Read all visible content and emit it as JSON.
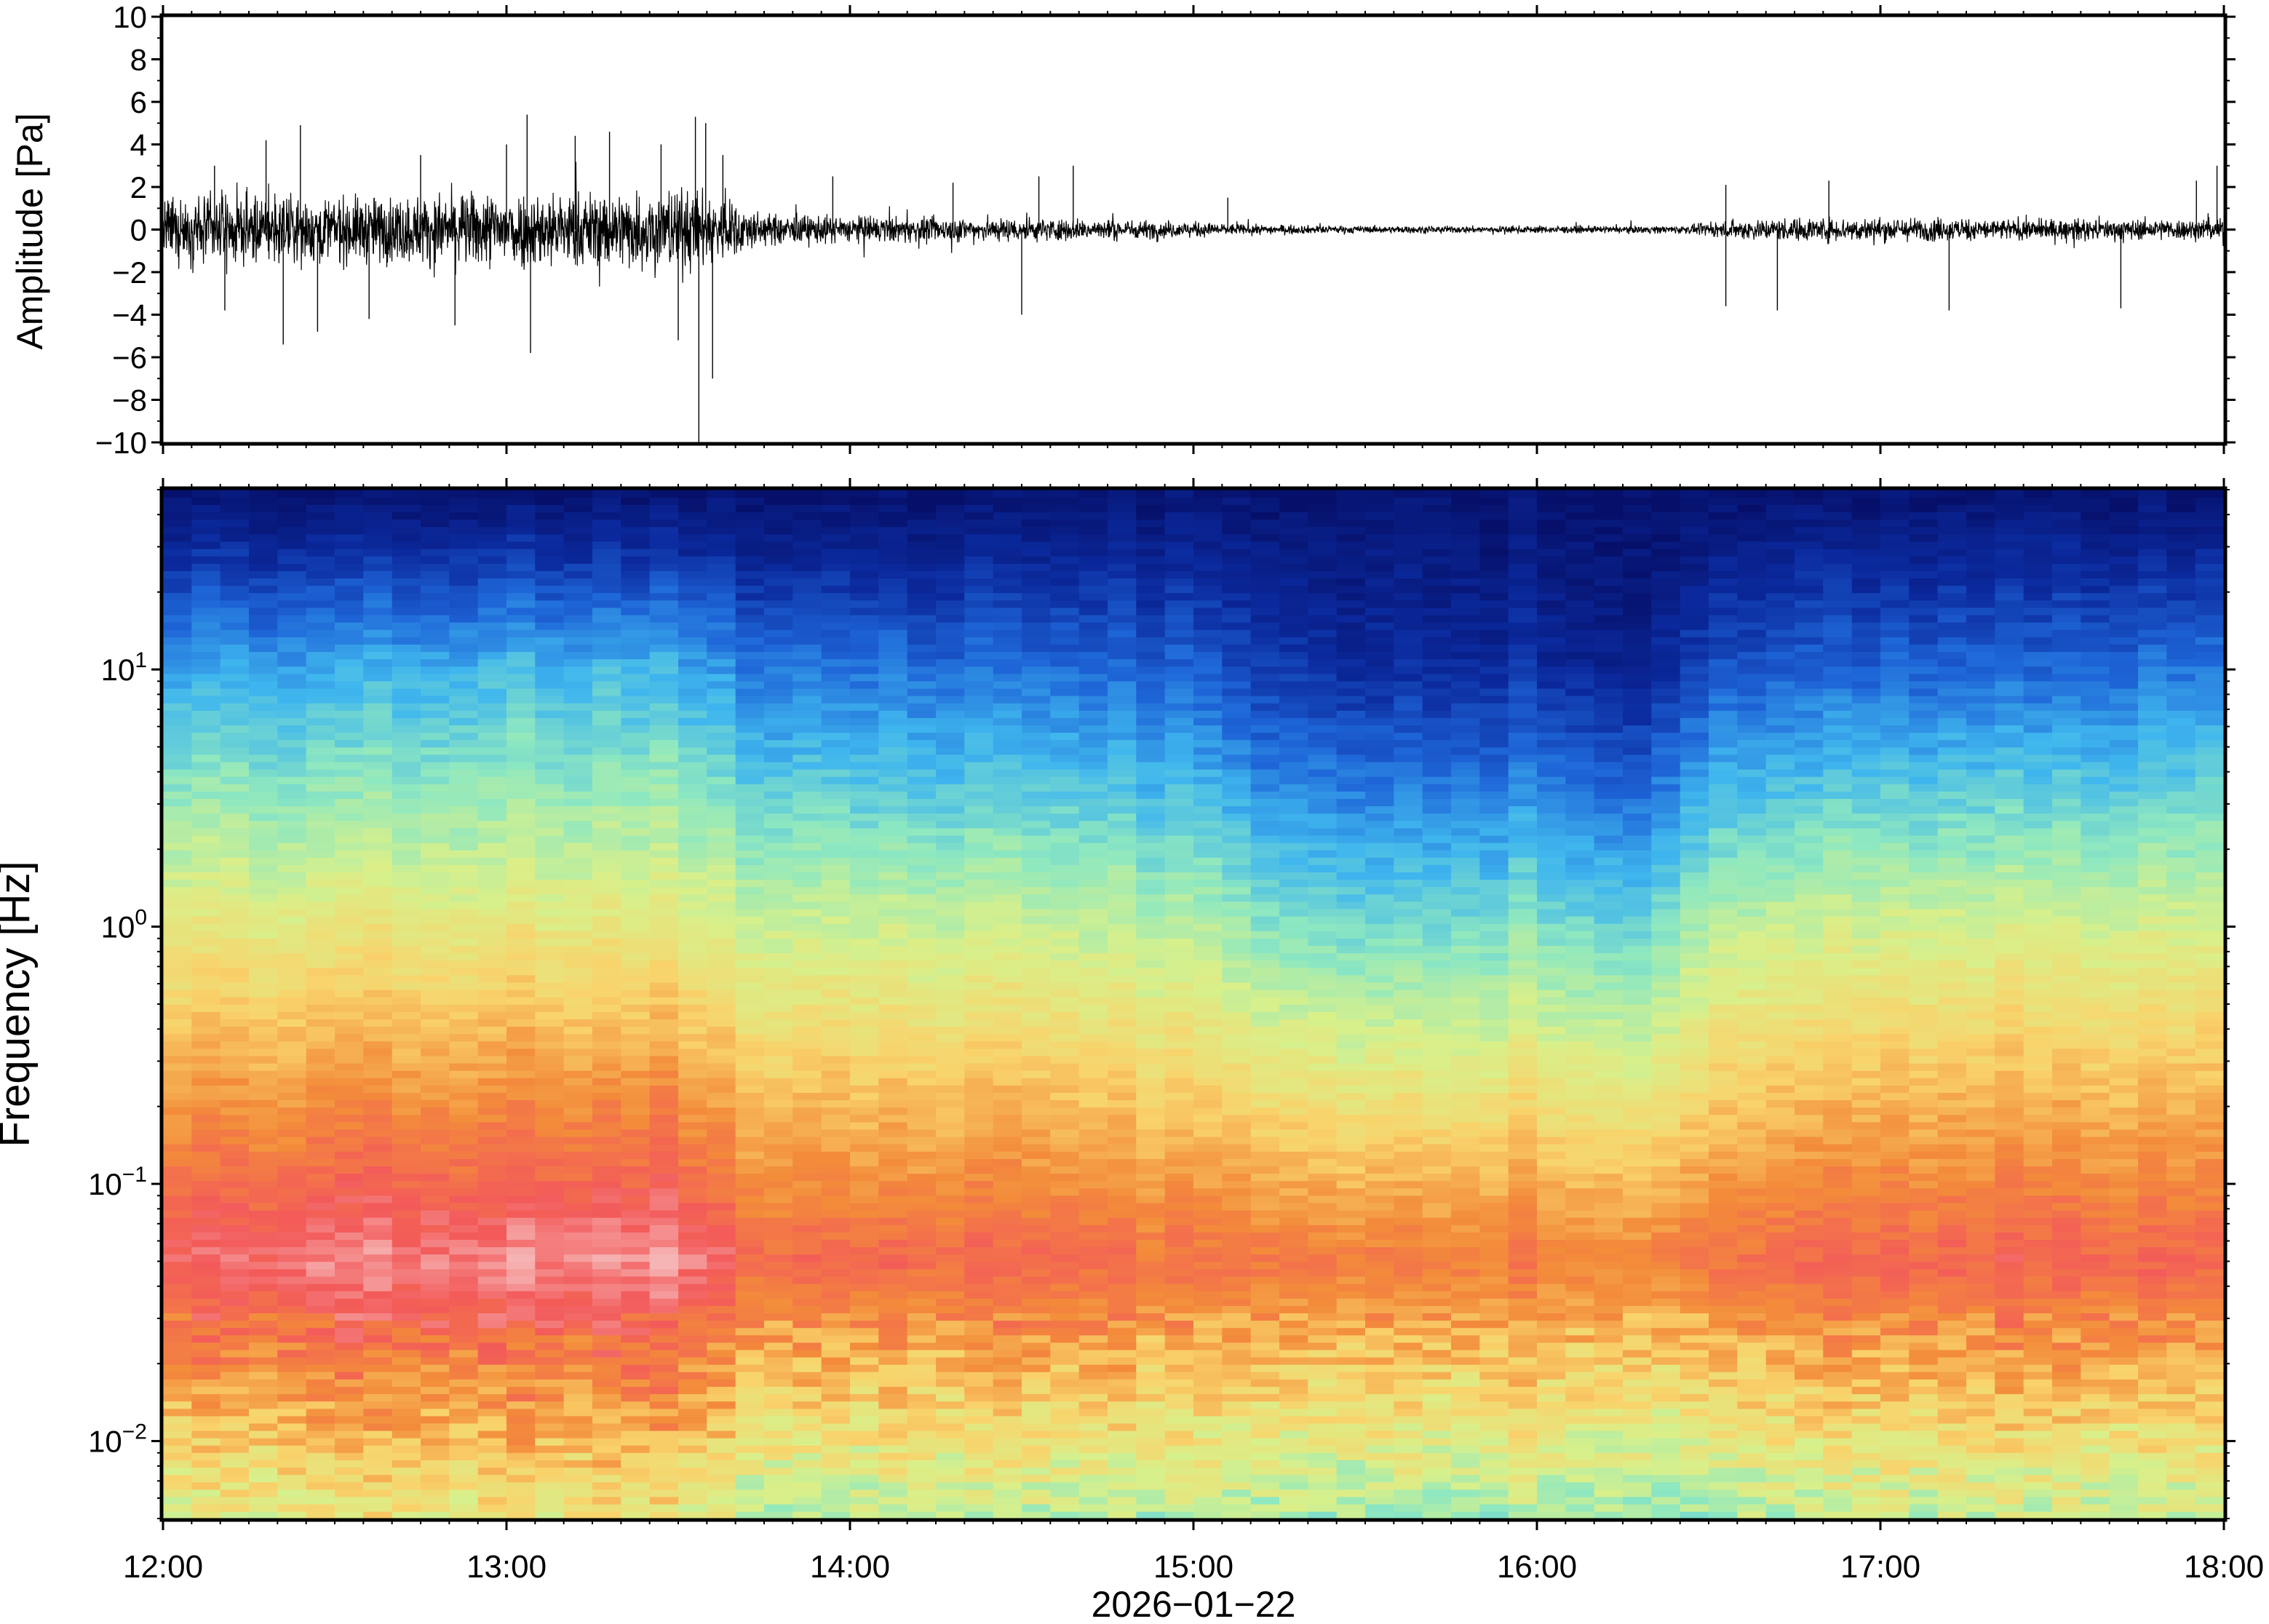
{
  "chart_data": [
    {
      "type": "line",
      "panel": "waveform",
      "ylabel": "Amplitude [Pa]",
      "ylim": [
        -10,
        10
      ],
      "yticks": [
        10,
        8,
        6,
        4,
        2,
        0,
        -2,
        -4,
        -6,
        -8,
        -10
      ],
      "ytick_labels": [
        "10",
        "8",
        "6",
        "4",
        "2",
        "0",
        "−2",
        "−4",
        "−6",
        "−8",
        "−10"
      ],
      "xlim": [
        "12:00",
        "18:00"
      ],
      "envelope": {
        "time_h": [
          12.0,
          12.25,
          12.5,
          12.75,
          13.0,
          13.25,
          13.5,
          13.62,
          13.75,
          14.0,
          14.25,
          14.5,
          14.75,
          15.0,
          15.15,
          15.4,
          15.75,
          16.0,
          16.25,
          16.45,
          16.6,
          16.8,
          17.0,
          17.25,
          17.5,
          17.75,
          18.0
        ],
        "amplitude_pa": [
          1.8,
          2.0,
          1.9,
          2.0,
          2.3,
          2.2,
          2.5,
          2.0,
          0.9,
          0.8,
          0.7,
          0.7,
          0.6,
          0.45,
          0.3,
          0.22,
          0.2,
          0.22,
          0.2,
          0.25,
          0.6,
          0.7,
          0.7,
          0.65,
          0.6,
          0.6,
          0.65
        ]
      },
      "spikes": [
        {
          "t": 12.15,
          "y": 3.0
        },
        {
          "t": 12.18,
          "y": -3.8
        },
        {
          "t": 12.3,
          "y": 4.2
        },
        {
          "t": 12.35,
          "y": -5.4
        },
        {
          "t": 12.4,
          "y": 4.9
        },
        {
          "t": 12.45,
          "y": -4.8
        },
        {
          "t": 12.6,
          "y": -4.2
        },
        {
          "t": 12.75,
          "y": 3.5
        },
        {
          "t": 12.85,
          "y": -4.5
        },
        {
          "t": 13.0,
          "y": 4.0
        },
        {
          "t": 13.06,
          "y": 5.4
        },
        {
          "t": 13.07,
          "y": -5.8
        },
        {
          "t": 13.2,
          "y": 4.4
        },
        {
          "t": 13.3,
          "y": 4.6
        },
        {
          "t": 13.45,
          "y": 4.0
        },
        {
          "t": 13.5,
          "y": -5.2
        },
        {
          "t": 13.55,
          "y": 5.3
        },
        {
          "t": 13.56,
          "y": -10.0
        },
        {
          "t": 13.58,
          "y": 5.0
        },
        {
          "t": 13.6,
          "y": -7.0
        },
        {
          "t": 13.63,
          "y": 3.5
        },
        {
          "t": 13.95,
          "y": 2.5
        },
        {
          "t": 14.3,
          "y": 2.2
        },
        {
          "t": 14.5,
          "y": -4.0
        },
        {
          "t": 14.55,
          "y": 2.5
        },
        {
          "t": 14.65,
          "y": 3.0
        },
        {
          "t": 15.1,
          "y": 1.5
        },
        {
          "t": 16.55,
          "y": 2.1
        },
        {
          "t": 16.55,
          "y": -3.6
        },
        {
          "t": 16.7,
          "y": -3.8
        },
        {
          "t": 16.85,
          "y": 2.3
        },
        {
          "t": 17.2,
          "y": -3.8
        },
        {
          "t": 17.7,
          "y": -3.7
        },
        {
          "t": 17.92,
          "y": 2.3
        },
        {
          "t": 17.98,
          "y": 3.0
        }
      ]
    },
    {
      "type": "heatmap",
      "panel": "spectrogram",
      "ylabel": "Frequency [Hz]",
      "yscale": "log",
      "ylim": [
        0.005,
        50
      ],
      "yticks": [
        0.01,
        0.1,
        1,
        10
      ],
      "ytick_labels": [
        {
          "base": "10",
          "exp": "−2"
        },
        {
          "base": "10",
          "exp": "−1"
        },
        {
          "base": "10",
          "exp": "0"
        },
        {
          "base": "10",
          "exp": "1"
        }
      ],
      "xlabel": "2026−01−22",
      "x_ticks": [
        "12:00",
        "13:00",
        "14:00",
        "15:00",
        "16:00",
        "17:00",
        "18:00"
      ],
      "colormap": [
        "#f7c7c7",
        "#f35a5a",
        "#f38c3a",
        "#f9d36b",
        "#d9f08a",
        "#8ee8c0",
        "#3fb6ee",
        "#1e66d8",
        "#0b2a9e",
        "#06106a"
      ],
      "quiet_interval_h": [
        15.15,
        16.5
      ],
      "time_h": [
        12.0,
        12.5,
        13.0,
        13.5,
        13.7,
        14.0,
        14.5,
        15.0,
        15.2,
        15.6,
        16.0,
        16.3,
        16.5,
        17.0,
        17.5,
        18.0
      ],
      "level_at_10hz": [
        0.68,
        0.68,
        0.66,
        0.66,
        0.74,
        0.74,
        0.76,
        0.8,
        0.86,
        0.9,
        0.88,
        0.92,
        0.8,
        0.78,
        0.78,
        0.74
      ],
      "level_at_1hz": [
        0.4,
        0.4,
        0.4,
        0.4,
        0.45,
        0.45,
        0.46,
        0.5,
        0.56,
        0.6,
        0.56,
        0.6,
        0.48,
        0.45,
        0.45,
        0.44
      ],
      "level_at_0_05hz": [
        0.1,
        0.06,
        0.06,
        0.04,
        0.14,
        0.14,
        0.14,
        0.18,
        0.18,
        0.2,
        0.18,
        0.2,
        0.16,
        0.14,
        0.14,
        0.14
      ]
    }
  ]
}
